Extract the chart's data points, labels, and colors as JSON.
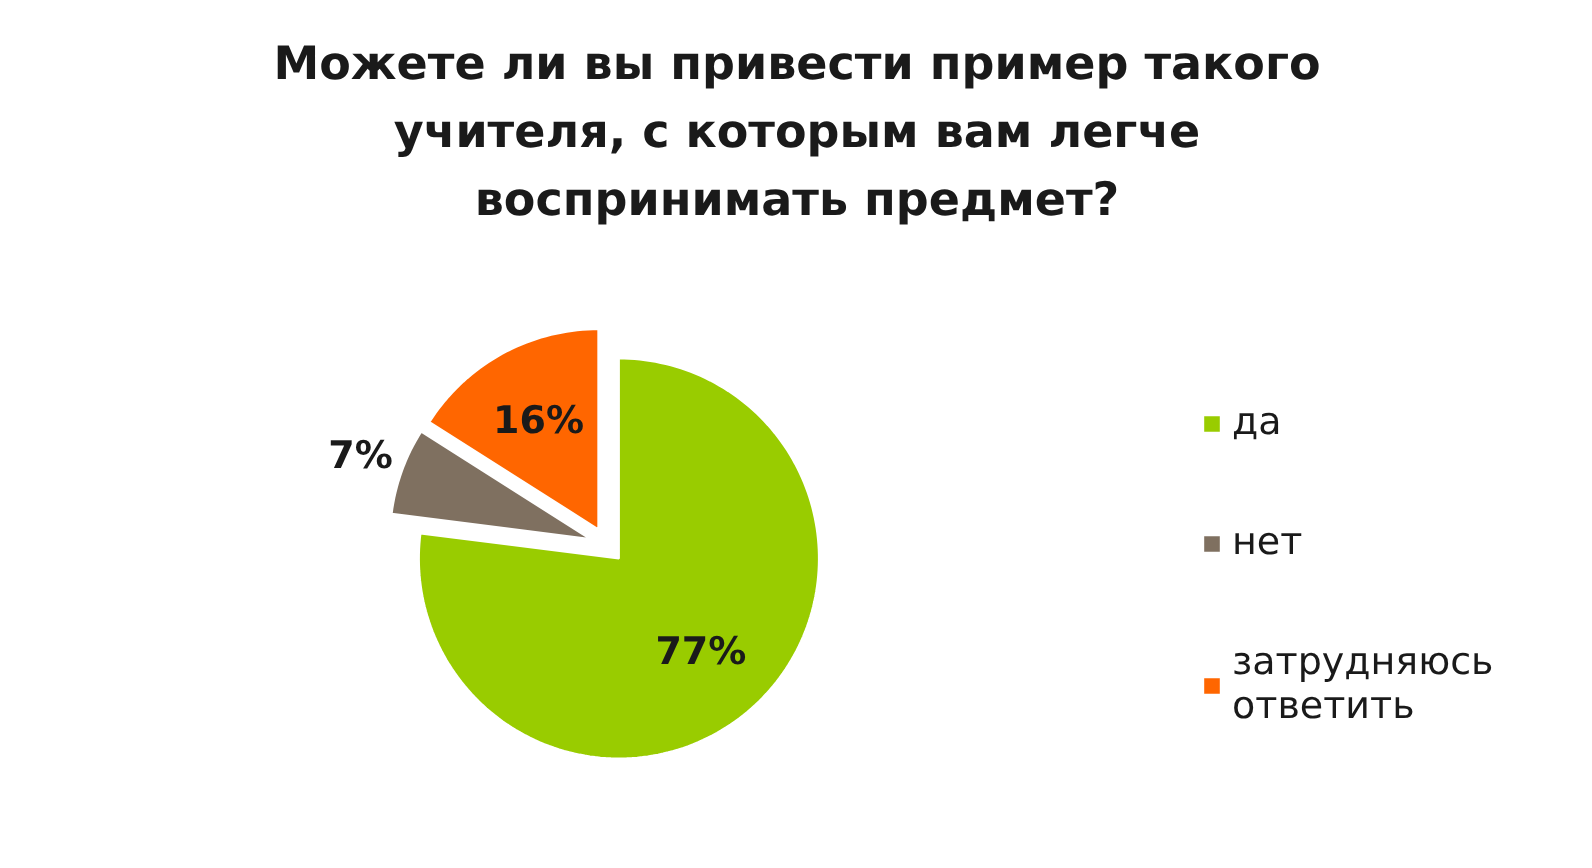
{
  "chart_data": {
    "type": "pie",
    "title": "Можете ли вы привести пример такого учителя, с которым вам легче воспринимать предмет?",
    "categories": [
      "да",
      "нет",
      "затрудняюсь ответить"
    ],
    "values": [
      77,
      7,
      16
    ],
    "colors": [
      "#99cc00",
      "#7f7060",
      "#ff6600"
    ],
    "value_labels": [
      "77%",
      "7%",
      "16%"
    ],
    "legend": "right"
  }
}
